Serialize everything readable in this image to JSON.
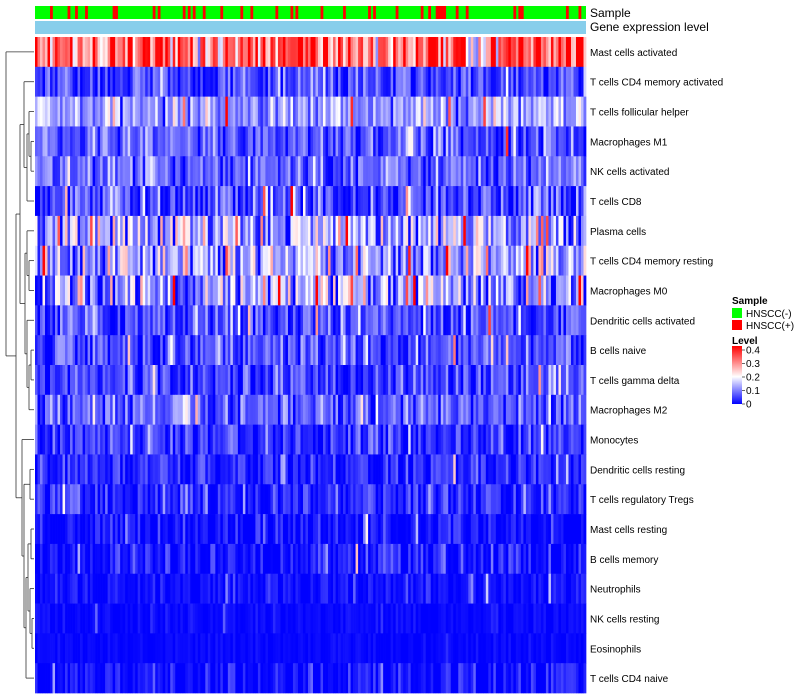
{
  "chart_data": {
    "type": "heatmap",
    "title": "",
    "annotations": [
      {
        "key": "sample",
        "label": "Sample"
      },
      {
        "key": "level",
        "label": "Gene expression level"
      }
    ],
    "rows": [
      {
        "label": "Mast cells activated",
        "mean": 0.33,
        "spread": 0.1
      },
      {
        "label": "T cells CD4 memory activated",
        "mean": 0.05,
        "spread": 0.045
      },
      {
        "label": "T cells follicular helper",
        "mean": 0.12,
        "spread": 0.05
      },
      {
        "label": "Macrophages M1",
        "mean": 0.07,
        "spread": 0.05
      },
      {
        "label": "NK cells activated",
        "mean": 0.08,
        "spread": 0.045
      },
      {
        "label": "T cells CD8",
        "mean": 0.06,
        "spread": 0.06
      },
      {
        "label": "Plasma cells",
        "mean": 0.13,
        "spread": 0.09
      },
      {
        "label": "T cells CD4 memory resting",
        "mean": 0.13,
        "spread": 0.08
      },
      {
        "label": "Macrophages M0",
        "mean": 0.11,
        "spread": 0.09
      },
      {
        "label": "Dendritic cells activated",
        "mean": 0.06,
        "spread": 0.055
      },
      {
        "label": "B cells naive",
        "mean": 0.06,
        "spread": 0.05
      },
      {
        "label": "T cells gamma delta",
        "mean": 0.05,
        "spread": 0.045
      },
      {
        "label": "Macrophages M2",
        "mean": 0.07,
        "spread": 0.05
      },
      {
        "label": "Monocytes",
        "mean": 0.04,
        "spread": 0.04
      },
      {
        "label": "Dendritic cells resting",
        "mean": 0.03,
        "spread": 0.03
      },
      {
        "label": "T cells regulatory  Tregs",
        "mean": 0.03,
        "spread": 0.04
      },
      {
        "label": "Mast cells resting",
        "mean": 0.01,
        "spread": 0.03
      },
      {
        "label": "B cells memory",
        "mean": 0.015,
        "spread": 0.035
      },
      {
        "label": "Neutrophils",
        "mean": 0.01,
        "spread": 0.02
      },
      {
        "label": "NK cells resting",
        "mean": 0.005,
        "spread": 0.01
      },
      {
        "label": "Eosinophils",
        "mean": 0.003,
        "spread": 0.008
      },
      {
        "label": "T cells CD4 naive",
        "mean": 0.01,
        "spread": 0.03
      }
    ],
    "n_samples": 220,
    "sample_fraction_positive": 0.22,
    "level_annotation_color": "#87ceeb",
    "legend": {
      "position": "right",
      "sample": {
        "title": "Sample",
        "items": [
          {
            "label": "HNSCC(-)",
            "color": "#00ff00"
          },
          {
            "label": "HNSCC(+)",
            "color": "#ff0000"
          }
        ]
      },
      "level": {
        "title": "Level",
        "ticks": [
          "0.4",
          "0.3",
          "0.2",
          "0.1",
          "0"
        ],
        "tick_values": [
          0.4,
          0.3,
          0.2,
          0.1,
          0
        ],
        "range": [
          0,
          0.43
        ],
        "colors": {
          "low": "#0000ff",
          "mid": "#ffffff",
          "high": "#ff0000"
        },
        "mid_value": 0.2
      }
    }
  }
}
